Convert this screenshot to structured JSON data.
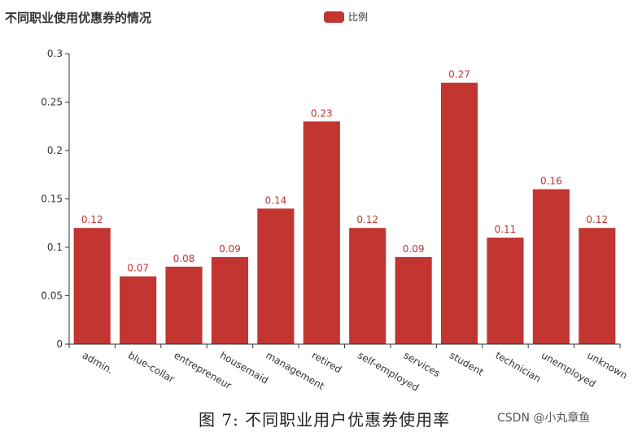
{
  "chart_data": {
    "type": "bar",
    "title": "不同职业使用优惠券的情况",
    "legend": {
      "label": "比例",
      "position": "top-center"
    },
    "colors": {
      "series": "#c23531",
      "axis": "#333333",
      "label": "#c23531"
    },
    "categories": [
      "admin.",
      "blue-collar",
      "entrepreneur",
      "housemaid",
      "management",
      "retired",
      "self-employed",
      "services",
      "student",
      "technician",
      "unemployed",
      "unknown"
    ],
    "series": [
      {
        "name": "比例",
        "values": [
          0.12,
          0.07,
          0.08,
          0.09,
          0.14,
          0.23,
          0.12,
          0.09,
          0.27,
          0.11,
          0.16,
          0.12
        ]
      }
    ],
    "data_labels": [
      "0.12",
      "0.07",
      "0.08",
      "0.09",
      "0.14",
      "0.23",
      "0.12",
      "0.09",
      "0.27",
      "0.11",
      "0.16",
      "0.12"
    ],
    "ylim": [
      0,
      0.3
    ],
    "yticks": [
      0,
      0.05,
      0.1,
      0.15,
      0.2,
      0.25,
      0.3
    ],
    "ytick_labels": [
      "0",
      "0.05",
      "0.1",
      "0.15",
      "0.2",
      "0.25",
      "0.3"
    ],
    "grid": false
  },
  "caption": "图 7: 不同职业用户优惠券使用率",
  "watermark": "CSDN @小丸章鱼"
}
